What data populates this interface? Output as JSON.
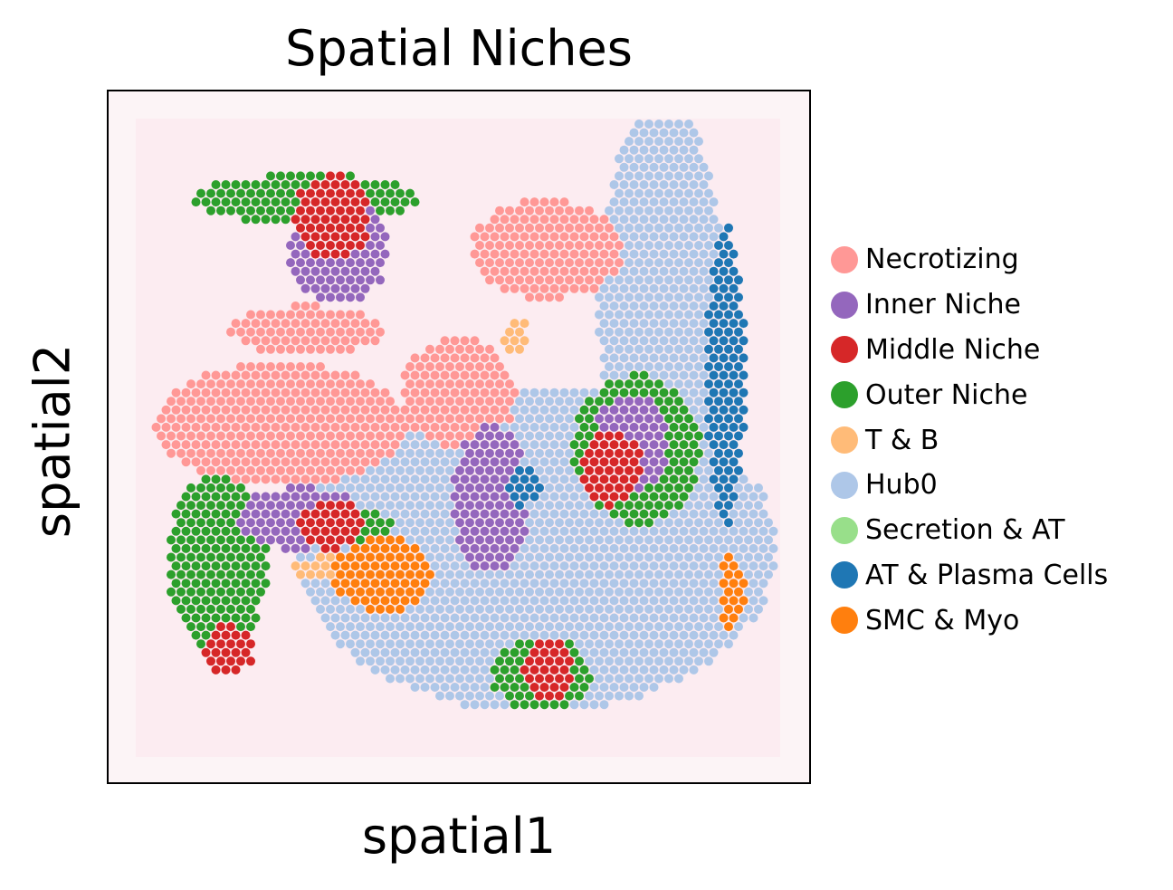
{
  "chart_data": {
    "type": "scatter",
    "title": "Spatial Niches",
    "xlabel": "spatial1",
    "ylabel": "spatial2",
    "xlim": [
      0,
      100
    ],
    "ylim": [
      0,
      100
    ],
    "ticks_visible": false,
    "grid": false,
    "legend_position": "right",
    "background": "H&E tissue image (pale pink)",
    "categories": [
      {
        "name": "Necrotizing",
        "color": "#ff9896"
      },
      {
        "name": "Inner Niche",
        "color": "#9467bd"
      },
      {
        "name": "Middle Niche",
        "color": "#d62728"
      },
      {
        "name": "Outer Niche",
        "color": "#2ca02c"
      },
      {
        "name": "T & B",
        "color": "#ffbb78"
      },
      {
        "name": "Hub0",
        "color": "#aec7e8"
      },
      {
        "name": "Secretion & AT",
        "color": "#98df8a"
      },
      {
        "name": "AT & Plasma Cells",
        "color": "#1f77b4"
      },
      {
        "name": "SMC & Myo",
        "color": "#ff7f0e"
      }
    ],
    "regions": [
      {
        "category": "Hub0",
        "cx": 62,
        "cy": 68,
        "rx": 38,
        "ry": 26
      },
      {
        "category": "Hub0",
        "cx": 82,
        "cy": 30,
        "rx": 10,
        "ry": 34
      },
      {
        "category": "Necrotizing",
        "cx": 22,
        "cy": 48,
        "rx": 20,
        "ry": 10
      },
      {
        "category": "Necrotizing",
        "cx": 50,
        "cy": 43,
        "rx": 9,
        "ry": 9
      },
      {
        "category": "Necrotizing",
        "cx": 26,
        "cy": 33,
        "rx": 12,
        "ry": 4
      },
      {
        "category": "Necrotizing",
        "cx": 64,
        "cy": 20,
        "rx": 12,
        "ry": 8
      },
      {
        "category": "Outer Niche",
        "cx": 12,
        "cy": 70,
        "rx": 8,
        "ry": 14
      },
      {
        "category": "Outer Niche",
        "cx": 28,
        "cy": 64,
        "rx": 12,
        "ry": 3
      },
      {
        "category": "Outer Niche",
        "cx": 78,
        "cy": 52,
        "rx": 10,
        "ry": 12
      },
      {
        "category": "Outer Niche",
        "cx": 26,
        "cy": 12,
        "rx": 18,
        "ry": 4
      },
      {
        "category": "Outer Niche",
        "cx": 63,
        "cy": 88,
        "rx": 8,
        "ry": 6
      },
      {
        "category": "Inner Niche",
        "cx": 25,
        "cy": 63,
        "rx": 10,
        "ry": 5
      },
      {
        "category": "Inner Niche",
        "cx": 55,
        "cy": 60,
        "rx": 6,
        "ry": 12
      },
      {
        "category": "Inner Niche",
        "cx": 31,
        "cy": 20,
        "rx": 8,
        "ry": 9
      },
      {
        "category": "Inner Niche",
        "cx": 77,
        "cy": 51,
        "rx": 6,
        "ry": 8
      },
      {
        "category": "Middle Niche",
        "cx": 30,
        "cy": 64,
        "rx": 5,
        "ry": 4
      },
      {
        "category": "Middle Niche",
        "cx": 30,
        "cy": 15,
        "rx": 6,
        "ry": 7
      },
      {
        "category": "Middle Niche",
        "cx": 74,
        "cy": 55,
        "rx": 5,
        "ry": 6
      },
      {
        "category": "Middle Niche",
        "cx": 64,
        "cy": 87,
        "rx": 4,
        "ry": 5
      },
      {
        "category": "Middle Niche",
        "cx": 14,
        "cy": 84,
        "rx": 4,
        "ry": 4
      },
      {
        "category": "T & B",
        "cx": 30,
        "cy": 71,
        "rx": 6,
        "ry": 2
      },
      {
        "category": "T & B",
        "cx": 59,
        "cy": 34,
        "rx": 2,
        "ry": 3
      },
      {
        "category": "AT & Plasma Cells",
        "cx": 92,
        "cy": 40,
        "rx": 3,
        "ry": 24
      },
      {
        "category": "AT & Plasma Cells",
        "cx": 60,
        "cy": 58,
        "rx": 3,
        "ry": 3
      },
      {
        "category": "SMC & Myo",
        "cx": 38,
        "cy": 72,
        "rx": 8,
        "ry": 6
      },
      {
        "category": "SMC & Myo",
        "cx": 93,
        "cy": 75,
        "rx": 2,
        "ry": 6
      }
    ]
  }
}
